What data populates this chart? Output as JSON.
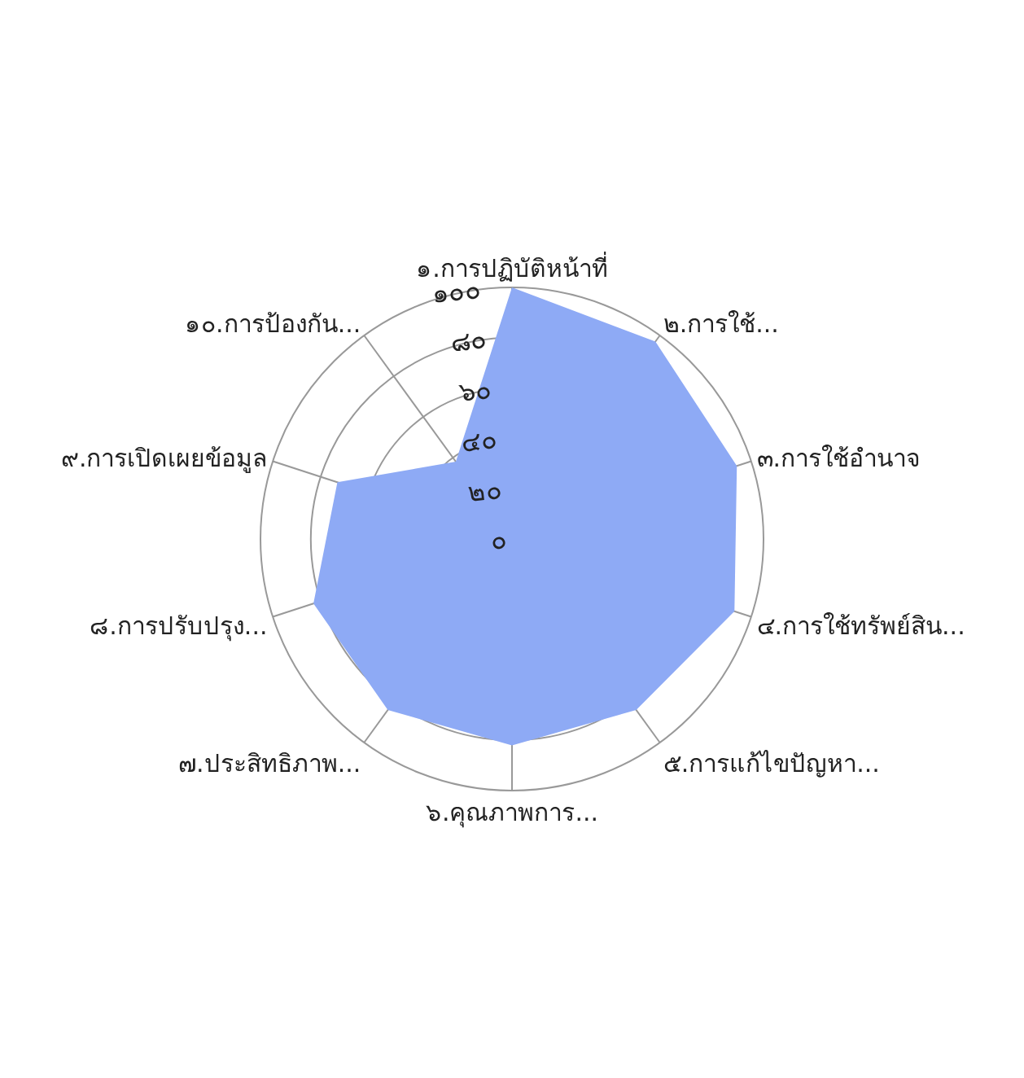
{
  "chart_data": {
    "type": "radar",
    "categories": [
      "๑.การปฏิบัติหน้าที่",
      "๒.การใช้...",
      "๓.การใช้อำนาจ",
      "๔.การใช้ทรัพย์สิน...",
      "๕.การแก้ไขปัญหา...",
      "๖.คุณภาพการ...",
      "๗.ประสิทธิภาพ...",
      "๘.การปรับปรุง...",
      "๙.การเปิดเผยข้อมูล",
      "๑๐.การป้องกัน..."
    ],
    "series": [
      {
        "color": "#8eaaf5",
        "values": [
          100,
          97,
          94,
          93,
          84,
          82,
          84,
          83,
          73,
          38
        ]
      }
    ],
    "ylim": [
      0,
      100
    ],
    "yticks": [
      {
        "value": 0,
        "label": "๐"
      },
      {
        "value": 20,
        "label": "๒๐"
      },
      {
        "value": 40,
        "label": "๔๐"
      },
      {
        "value": 60,
        "label": "๖๐"
      },
      {
        "value": 80,
        "label": "๘๐"
      },
      {
        "value": 100,
        "label": "๑๐๐"
      }
    ],
    "grid": true
  }
}
